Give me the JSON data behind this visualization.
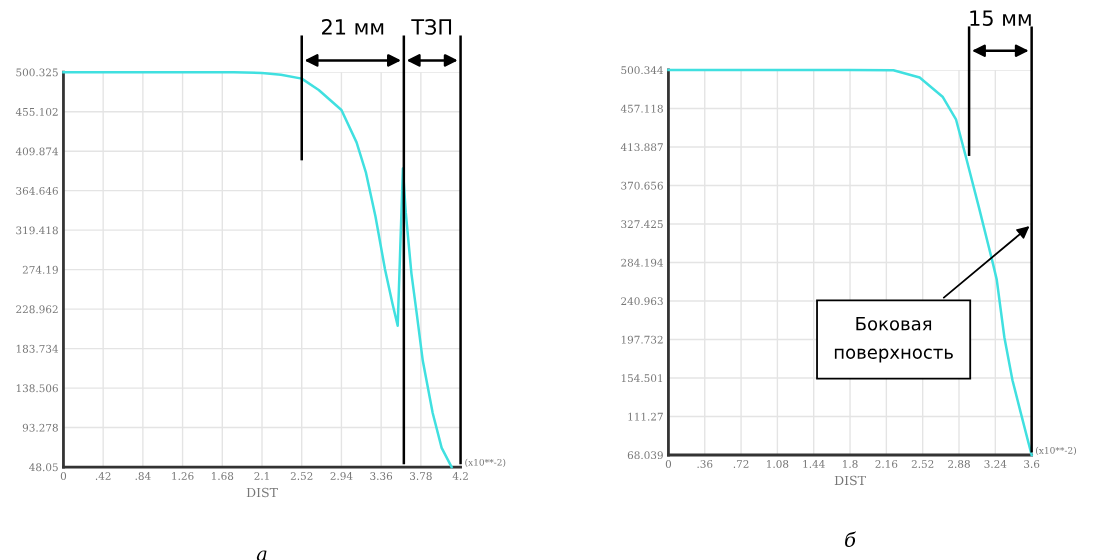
{
  "chart_data": [
    {
      "type": "line",
      "xlabel": "DIST",
      "annotations": [
        "(x10**-2)",
        "а",
        "21 мм",
        "ТЗП"
      ],
      "series": [
        {
          "color": "#40e0e0",
          "x": [
            0,
            1.0,
            1.8,
            2.1,
            2.3,
            2.52,
            2.7,
            2.94,
            3.1,
            3.2,
            3.3,
            3.4,
            3.48,
            3.535,
            3.59,
            3.62,
            3.68,
            3.736,
            3.8,
            3.905,
            4.0,
            4.105
          ],
          "values": [
            500.325,
            500.325,
            500.325,
            499.5,
            497.5,
            493,
            480,
            457,
            420,
            385,
            335,
            275,
            235,
            210,
            390,
            340,
            270,
            224,
            170,
            110,
            70,
            48.05
          ]
        }
      ],
      "xlim": [
        0,
        4.2
      ],
      "ylim": [
        48.05,
        500.325
      ],
      "xticks": [
        0,
        {
          "value": 0.42,
          "label": ".42"
        },
        {
          "value": 0.84,
          "label": ".84"
        },
        1.26,
        1.68,
        2.1,
        2.52,
        2.94,
        3.36,
        3.78,
        4.2
      ],
      "yticks": [
        48.05,
        93.278,
        138.506,
        183.734,
        228.962,
        274.19,
        319.418,
        364.646,
        409.874,
        455.102,
        500.325
      ],
      "ref_lines": [
        {
          "axis": "x",
          "value": 2.52
        },
        {
          "axis": "x",
          "value": 3.6
        },
        {
          "axis": "x",
          "value": 4.2
        }
      ],
      "grid": true,
      "marker": "none",
      "line_style": "solid"
    },
    {
      "type": "line",
      "xlabel": "DIST",
      "annotations": [
        "(x10**-2)",
        "б",
        "15 мм",
        {
          "text": "Боковая\nповерхность",
          "x": 3.6,
          "y": 327
        }
      ],
      "series": [
        {
          "color": "#40e0e0",
          "x": [
            0,
            1.0,
            1.8,
            2.23,
            2.49,
            2.72,
            2.85,
            2.957,
            3.08,
            3.214,
            3.254,
            3.33,
            3.41,
            3.5,
            3.6
          ],
          "values": [
            500.344,
            500.344,
            500.344,
            500,
            492,
            470,
            445,
            399,
            345,
            284,
            265,
            200,
            152,
            112,
            68.039
          ]
        }
      ],
      "xlim": [
        0,
        3.6
      ],
      "ylim": [
        68.039,
        500.344
      ],
      "xticks": [
        0,
        {
          "value": 0.36,
          "label": ".36"
        },
        {
          "value": 0.72,
          "label": ".72"
        },
        1.08,
        1.44,
        1.8,
        2.16,
        2.52,
        2.88,
        3.24,
        3.6
      ],
      "yticks": [
        68.039,
        111.27,
        154.501,
        197.732,
        240.963,
        284.194,
        327.425,
        370.656,
        413.887,
        457.118,
        500.344
      ],
      "ref_lines": [
        {
          "axis": "x",
          "value": 2.98
        },
        {
          "axis": "x",
          "value": 3.6
        }
      ],
      "grid": true,
      "marker": "none",
      "line_style": "solid"
    }
  ]
}
